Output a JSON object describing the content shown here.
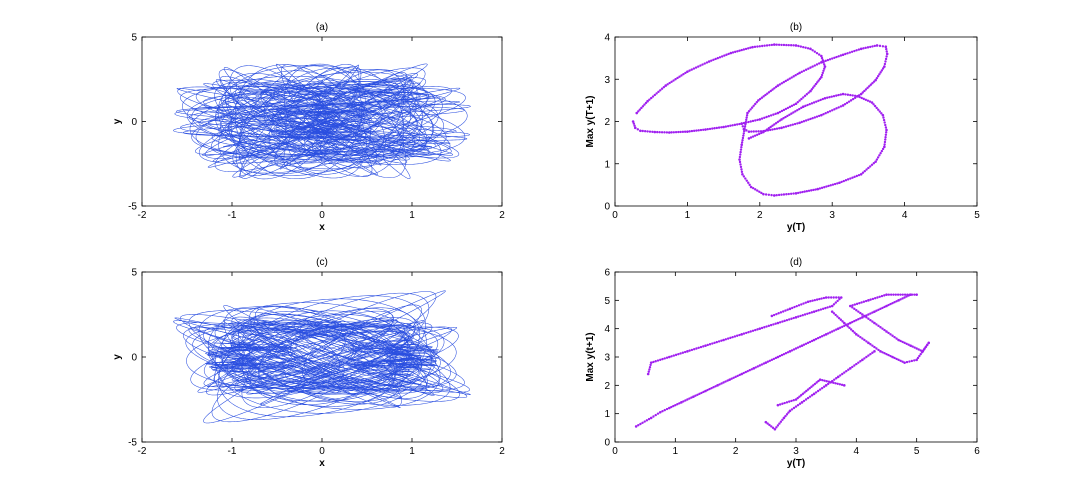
{
  "chart_data": [
    {
      "type": "line",
      "title": "(a)",
      "xlabel": "x",
      "ylabel": "y",
      "xlim": [
        -2,
        2
      ],
      "ylim": [
        -5,
        5
      ],
      "xticks": [
        -2,
        -1,
        0,
        1,
        2
      ],
      "yticks": [
        -5,
        0,
        5
      ],
      "color": "#2b4fe0",
      "grid": false,
      "series": [
        {
          "kind": "orbit",
          "loops": [
            {
              "cx": 0.0,
              "rx": 1.4,
              "ry": 1.8,
              "w": 0.52
            },
            {
              "cx": 0.08,
              "rx": 1.3,
              "ry": 3.9,
              "w": 0.9
            },
            {
              "cx": -0.08,
              "rx": 1.3,
              "ry": 3.9,
              "w": 0.9
            },
            {
              "cx": 0.25,
              "rx": 0.8,
              "ry": 3.4,
              "w": 1.1
            },
            {
              "cx": -0.25,
              "rx": 0.8,
              "ry": 3.4,
              "w": 1.1
            },
            {
              "cx": 0.45,
              "rx": 0.55,
              "ry": 2.5,
              "w": 0.6
            },
            {
              "cx": -0.45,
              "rx": 0.55,
              "ry": 2.5,
              "w": 0.6
            },
            {
              "cx": 0.2,
              "rx": 0.3,
              "ry": 1.2,
              "w": 0.4
            },
            {
              "cx": -0.2,
              "rx": 0.3,
              "ry": 1.2,
              "w": 0.4
            }
          ]
        }
      ]
    },
    {
      "type": "scatter",
      "title": "(b)",
      "xlabel": "y(T)",
      "ylabel": "Max y(T+1)",
      "xlim": [
        0,
        5
      ],
      "ylim": [
        0,
        4
      ],
      "xticks": [
        0,
        1,
        2,
        3,
        4,
        5
      ],
      "yticks": [
        0,
        1,
        2,
        3,
        4
      ],
      "color": "#a020f0",
      "grid": false,
      "series": [
        {
          "name": "",
          "points": [
            [
              0.25,
              2.0
            ],
            [
              0.28,
              1.85
            ],
            [
              0.35,
              1.78
            ],
            [
              0.55,
              1.75
            ],
            [
              0.75,
              1.74
            ],
            [
              1.0,
              1.76
            ],
            [
              1.25,
              1.81
            ],
            [
              1.5,
              1.87
            ],
            [
              1.75,
              1.95
            ],
            [
              2.0,
              2.05
            ],
            [
              2.25,
              2.2
            ],
            [
              2.5,
              2.42
            ],
            [
              2.7,
              2.72
            ],
            [
              2.85,
              3.05
            ],
            [
              2.9,
              3.3
            ],
            [
              2.85,
              3.55
            ],
            [
              2.7,
              3.72
            ],
            [
              2.5,
              3.8
            ],
            [
              2.2,
              3.82
            ],
            [
              1.9,
              3.76
            ],
            [
              1.6,
              3.62
            ],
            [
              1.3,
              3.42
            ],
            [
              1.0,
              3.18
            ],
            [
              0.7,
              2.85
            ],
            [
              0.45,
              2.48
            ],
            [
              0.3,
              2.2
            ],
            [
              1.75,
              1.95
            ],
            [
              1.78,
              1.82
            ],
            [
              1.85,
              1.76
            ],
            [
              2.05,
              1.77
            ],
            [
              2.3,
              1.85
            ],
            [
              2.55,
              1.97
            ],
            [
              2.85,
              2.15
            ],
            [
              3.15,
              2.38
            ],
            [
              3.4,
              2.65
            ],
            [
              3.6,
              2.98
            ],
            [
              3.72,
              3.3
            ],
            [
              3.76,
              3.6
            ],
            [
              3.74,
              3.77
            ],
            [
              3.62,
              3.8
            ],
            [
              3.4,
              3.72
            ],
            [
              3.15,
              3.58
            ],
            [
              2.85,
              3.4
            ],
            [
              2.55,
              3.15
            ],
            [
              2.25,
              2.85
            ],
            [
              1.98,
              2.5
            ],
            [
              1.83,
              2.2
            ],
            [
              1.75,
              1.45
            ],
            [
              1.72,
              1.1
            ],
            [
              1.76,
              0.75
            ],
            [
              1.88,
              0.45
            ],
            [
              2.05,
              0.28
            ],
            [
              2.2,
              0.25
            ],
            [
              2.5,
              0.3
            ],
            [
              2.8,
              0.4
            ],
            [
              3.1,
              0.55
            ],
            [
              3.4,
              0.75
            ],
            [
              3.6,
              1.05
            ],
            [
              3.72,
              1.4
            ],
            [
              3.75,
              1.8
            ],
            [
              3.7,
              2.15
            ],
            [
              3.55,
              2.45
            ],
            [
              3.35,
              2.6
            ],
            [
              3.15,
              2.65
            ],
            [
              2.9,
              2.55
            ],
            [
              2.6,
              2.35
            ],
            [
              2.3,
              2.05
            ],
            [
              2.05,
              1.75
            ],
            [
              1.85,
              1.6
            ]
          ]
        }
      ]
    },
    {
      "type": "line",
      "title": "(c)",
      "xlabel": "x",
      "ylabel": "y",
      "xlim": [
        -2,
        2
      ],
      "ylim": [
        -5,
        5
      ],
      "xticks": [
        -2,
        -1,
        0,
        1,
        2
      ],
      "yticks": [
        -5,
        0,
        5
      ],
      "color": "#2b4fe0",
      "grid": false,
      "series": [
        {
          "kind": "orbit",
          "loops": [
            {
              "cx": 0.0,
              "rx": 1.4,
              "ry": 3.9,
              "w": 0.95
            },
            {
              "cx": 0.1,
              "rx": 1.2,
              "ry": 3.5,
              "w": 1.1
            },
            {
              "cx": -0.1,
              "rx": 1.2,
              "ry": 3.5,
              "w": 1.1
            },
            {
              "cx": 0.05,
              "rx": 0.9,
              "ry": 3.0,
              "w": 0.8
            },
            {
              "cx": -0.3,
              "rx": 0.6,
              "ry": 2.2,
              "w": 0.7
            },
            {
              "cx": 0.3,
              "rx": 0.6,
              "ry": 2.2,
              "w": 0.7
            },
            {
              "cx": -1.0,
              "rx": 0.25,
              "ry": 0.9,
              "w": 0.2
            },
            {
              "cx": 1.0,
              "rx": 0.25,
              "ry": 0.9,
              "w": 0.2
            },
            {
              "cx": -0.7,
              "rx": 0.35,
              "ry": 1.1,
              "w": 0.25
            },
            {
              "cx": 0.7,
              "rx": 0.35,
              "ry": 1.1,
              "w": 0.25
            }
          ]
        }
      ]
    },
    {
      "type": "scatter",
      "title": "(d)",
      "xlabel": "y(T)",
      "ylabel": "Max y(t+1)",
      "xlim": [
        0,
        6
      ],
      "ylim": [
        0,
        6
      ],
      "xticks": [
        0,
        1,
        2,
        3,
        4,
        5,
        6
      ],
      "yticks": [
        0,
        1,
        2,
        3,
        4,
        5,
        6
      ],
      "color": "#a020f0",
      "grid": false,
      "series": [
        {
          "name": "",
          "points": [
            [
              0.35,
              0.55
            ],
            [
              0.6,
              0.85
            ],
            [
              0.75,
              1.05
            ],
            [
              0.9,
              1.2
            ],
            [
              1.1,
              1.4
            ],
            [
              1.3,
              1.6
            ],
            [
              1.5,
              1.8
            ],
            [
              1.7,
              2.0
            ],
            [
              1.9,
              2.2
            ],
            [
              2.1,
              2.4
            ],
            [
              2.3,
              2.6
            ],
            [
              2.5,
              2.8
            ],
            [
              2.7,
              3.0
            ],
            [
              2.9,
              3.2
            ],
            [
              3.1,
              3.4
            ],
            [
              3.3,
              3.6
            ],
            [
              3.5,
              3.8
            ],
            [
              3.7,
              4.0
            ],
            [
              3.9,
              4.2
            ],
            [
              4.1,
              4.4
            ],
            [
              4.3,
              4.6
            ],
            [
              4.5,
              4.8
            ],
            [
              4.7,
              5.0
            ],
            [
              4.9,
              5.2
            ],
            [
              0.55,
              2.4
            ],
            [
              0.6,
              2.8
            ],
            [
              0.9,
              3.0
            ],
            [
              1.2,
              3.2
            ],
            [
              1.5,
              3.4
            ],
            [
              1.8,
              3.6
            ],
            [
              2.1,
              3.8
            ],
            [
              2.4,
              4.0
            ],
            [
              2.7,
              4.2
            ],
            [
              3.0,
              4.4
            ],
            [
              3.3,
              4.6
            ],
            [
              3.6,
              4.8
            ],
            [
              3.75,
              5.1
            ],
            [
              3.5,
              5.1
            ],
            [
              3.2,
              4.95
            ],
            [
              2.9,
              4.7
            ],
            [
              2.6,
              4.45
            ],
            [
              3.6,
              4.6
            ],
            [
              3.8,
              4.2
            ],
            [
              4.0,
              3.8
            ],
            [
              4.2,
              3.5
            ],
            [
              4.4,
              3.2
            ],
            [
              4.6,
              3.0
            ],
            [
              4.8,
              2.8
            ],
            [
              5.0,
              2.9
            ],
            [
              5.2,
              3.5
            ],
            [
              5.1,
              3.2
            ],
            [
              4.9,
              3.4
            ],
            [
              4.7,
              3.6
            ],
            [
              4.5,
              3.9
            ],
            [
              4.3,
              4.2
            ],
            [
              4.1,
              4.5
            ],
            [
              3.9,
              4.8
            ],
            [
              4.2,
              5.0
            ],
            [
              4.5,
              5.2
            ],
            [
              5.0,
              5.2
            ],
            [
              2.5,
              0.7
            ],
            [
              2.65,
              0.45
            ],
            [
              2.8,
              0.85
            ],
            [
              2.9,
              1.1
            ],
            [
              3.1,
              1.4
            ],
            [
              3.3,
              1.7
            ],
            [
              3.5,
              2.0
            ],
            [
              3.7,
              2.3
            ],
            [
              3.9,
              2.6
            ],
            [
              4.1,
              2.9
            ],
            [
              4.3,
              3.2
            ],
            [
              2.7,
              1.3
            ],
            [
              3.0,
              1.5
            ],
            [
              3.4,
              2.2
            ],
            [
              3.8,
              2.0
            ]
          ]
        }
      ]
    }
  ]
}
